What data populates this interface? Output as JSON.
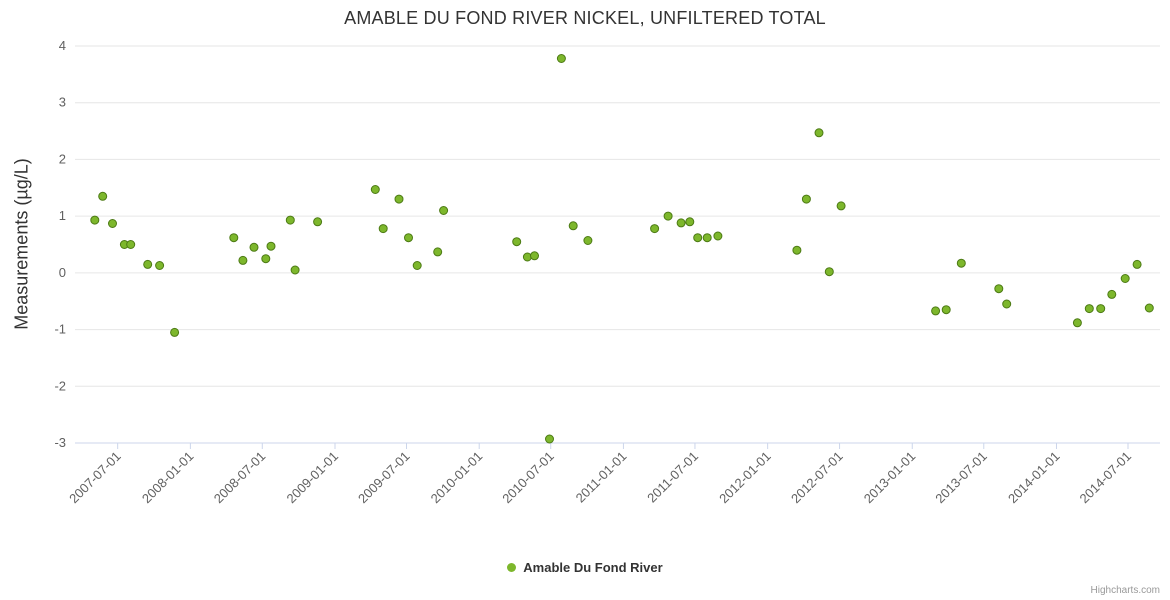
{
  "chart_data": {
    "type": "scatter",
    "title": "AMABLE DU FOND RIVER NICKEL, UNFILTERED TOTAL",
    "xlabel": "",
    "ylabel": "Measurements (µg/L)",
    "ylim": [
      -3,
      4
    ],
    "y_ticks": [
      4,
      3,
      2,
      1,
      0,
      -1,
      -2,
      -3
    ],
    "x_ticks": [
      "2007-07-01",
      "2008-01-01",
      "2008-07-01",
      "2009-01-01",
      "2009-07-01",
      "2010-01-01",
      "2010-07-01",
      "2011-01-01",
      "2011-07-01",
      "2012-01-01",
      "2012-07-01",
      "2013-01-01",
      "2013-07-01",
      "2014-01-01",
      "2014-07-01"
    ],
    "x_range": [
      "2007-03-15",
      "2014-09-20"
    ],
    "grid": "horizontal",
    "legend_position": "bottom-center",
    "credits": "Highcharts.com",
    "colors": {
      "marker_fill": "#7db72c",
      "marker_stroke": "#4c7a14",
      "grid": "#e6e6e6",
      "axis_line": "#ccd6eb",
      "labels": "#606060",
      "title": "#333333"
    },
    "series": [
      {
        "name": "Amable Du Fond River",
        "color": "#7db72c",
        "points": [
          [
            "2007-05-04",
            0.93
          ],
          [
            "2007-05-24",
            1.35
          ],
          [
            "2007-06-18",
            0.87
          ],
          [
            "2007-07-18",
            0.5
          ],
          [
            "2007-08-03",
            0.5
          ],
          [
            "2007-09-15",
            0.15
          ],
          [
            "2007-10-15",
            0.13
          ],
          [
            "2007-11-22",
            -1.05
          ],
          [
            "2008-04-20",
            0.62
          ],
          [
            "2008-05-13",
            0.22
          ],
          [
            "2008-06-10",
            0.45
          ],
          [
            "2008-07-10",
            0.25
          ],
          [
            "2008-07-23",
            0.47
          ],
          [
            "2008-09-10",
            0.93
          ],
          [
            "2008-09-22",
            0.05
          ],
          [
            "2008-11-18",
            0.9
          ],
          [
            "2009-04-13",
            1.47
          ],
          [
            "2009-05-03",
            0.78
          ],
          [
            "2009-06-12",
            1.3
          ],
          [
            "2009-07-06",
            0.62
          ],
          [
            "2009-07-28",
            0.13
          ],
          [
            "2009-09-18",
            0.37
          ],
          [
            "2009-10-03",
            1.1
          ],
          [
            "2010-04-06",
            0.55
          ],
          [
            "2010-05-03",
            0.28
          ],
          [
            "2010-05-21",
            0.3
          ],
          [
            "2010-06-28",
            -2.93
          ],
          [
            "2010-07-28",
            3.78
          ],
          [
            "2010-08-27",
            0.83
          ],
          [
            "2010-10-03",
            0.57
          ],
          [
            "2011-03-21",
            0.78
          ],
          [
            "2011-04-24",
            1.0
          ],
          [
            "2011-05-27",
            0.88
          ],
          [
            "2011-06-18",
            0.9
          ],
          [
            "2011-07-08",
            0.62
          ],
          [
            "2011-08-01",
            0.62
          ],
          [
            "2011-08-28",
            0.65
          ],
          [
            "2012-03-15",
            0.4
          ],
          [
            "2012-04-08",
            1.3
          ],
          [
            "2012-05-10",
            2.47
          ],
          [
            "2012-06-05",
            0.02
          ],
          [
            "2012-07-05",
            1.18
          ],
          [
            "2013-03-01",
            -0.67
          ],
          [
            "2013-03-28",
            -0.65
          ],
          [
            "2013-05-05",
            0.17
          ],
          [
            "2013-08-08",
            -0.28
          ],
          [
            "2013-08-28",
            -0.55
          ],
          [
            "2014-02-23",
            -0.88
          ],
          [
            "2014-03-25",
            -0.63
          ],
          [
            "2014-04-23",
            -0.63
          ],
          [
            "2014-05-21",
            -0.38
          ],
          [
            "2014-06-24",
            -0.1
          ],
          [
            "2014-07-24",
            0.15
          ],
          [
            "2014-08-24",
            -0.62
          ]
        ]
      }
    ]
  }
}
